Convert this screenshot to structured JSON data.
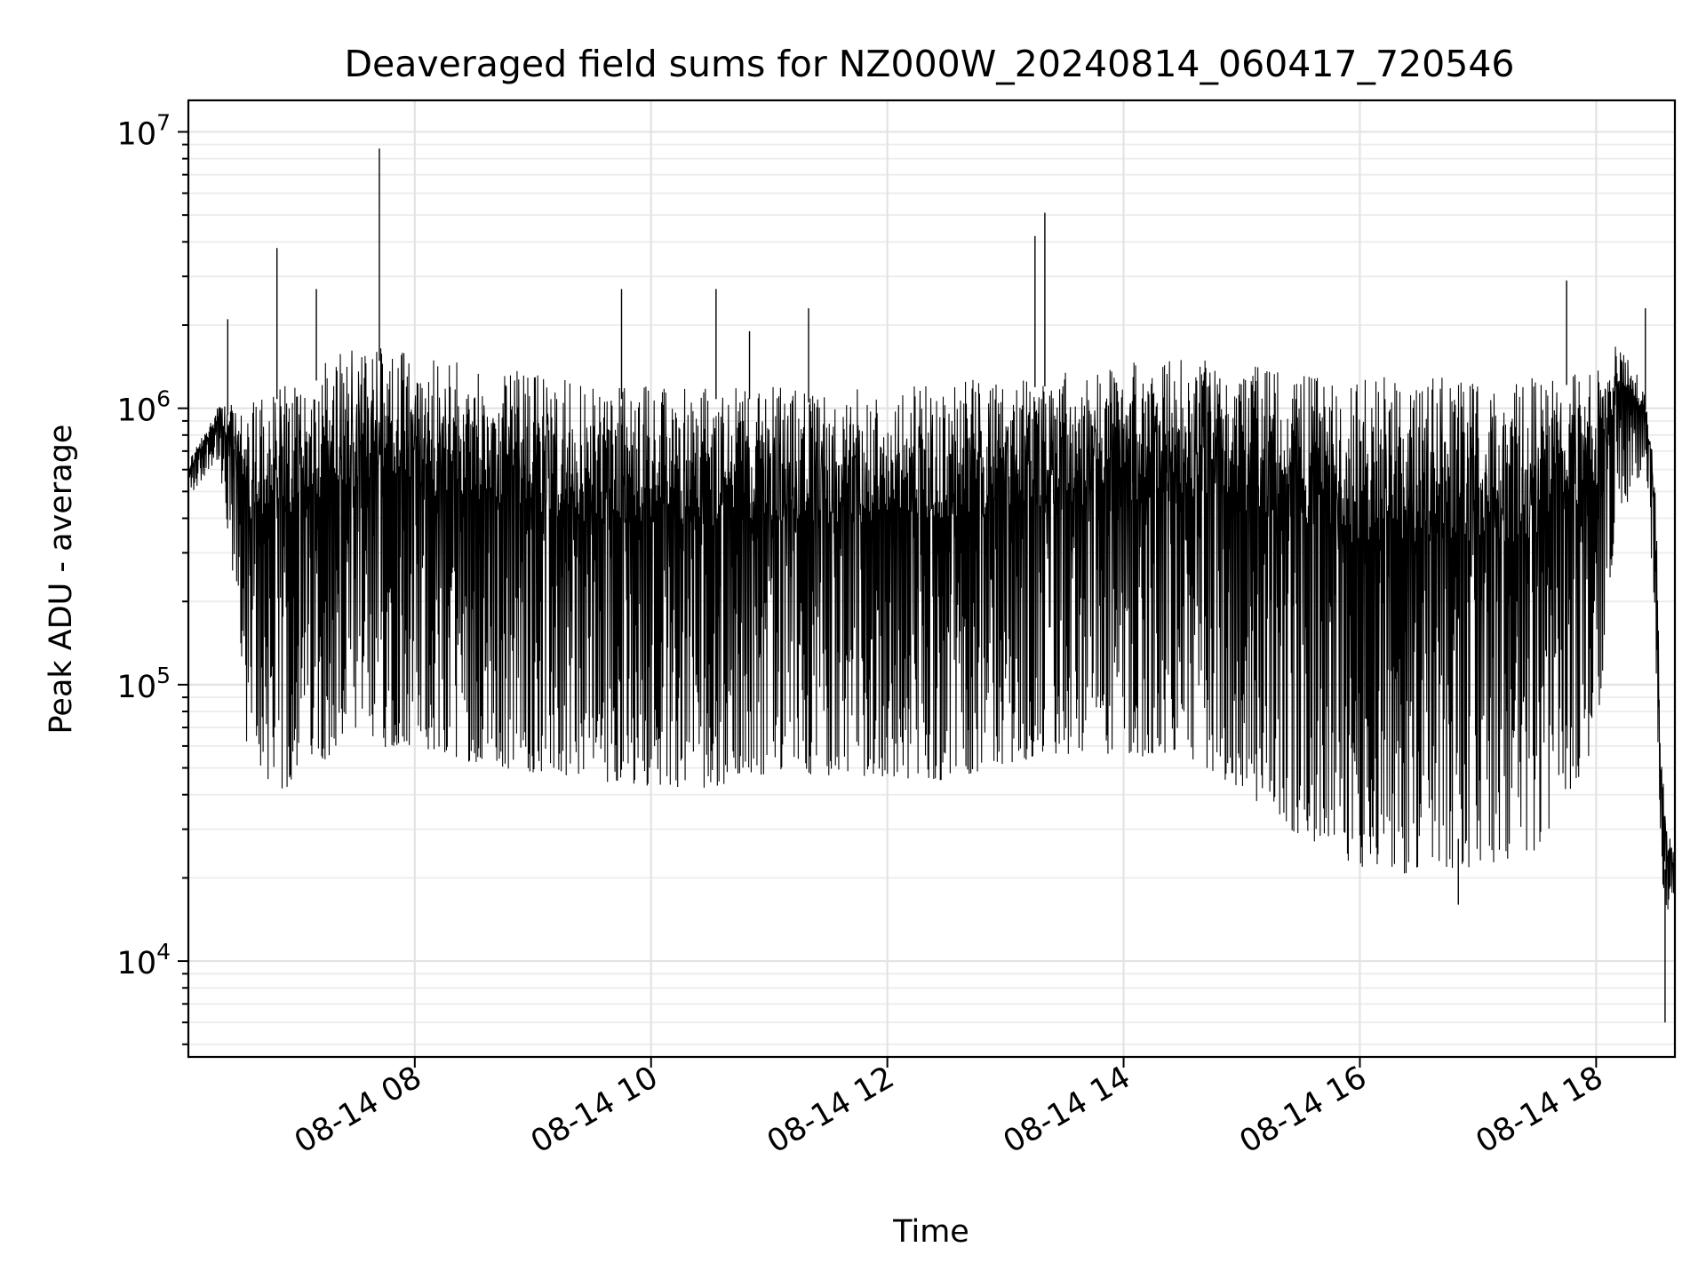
{
  "chart_data": {
    "type": "line",
    "title": "Deaveraged field sums for NZ000W_20240814_060417_720546",
    "xlabel": "Time",
    "ylabel": "Peak ADU - average",
    "yscale": "log",
    "ylim": [
      4500,
      13000000
    ],
    "xlim": [
      "2024-08-14 06:05",
      "2024-08-14 18:40"
    ],
    "grid": true,
    "x_ticks": [
      {
        "value": "2024-08-14 08:00",
        "label": "08-14 08"
      },
      {
        "value": "2024-08-14 10:00",
        "label": "08-14 10"
      },
      {
        "value": "2024-08-14 12:00",
        "label": "08-14 12"
      },
      {
        "value": "2024-08-14 14:00",
        "label": "08-14 14"
      },
      {
        "value": "2024-08-14 16:00",
        "label": "08-14 16"
      },
      {
        "value": "2024-08-14 18:00",
        "label": "08-14 18"
      }
    ],
    "y_ticks": [
      {
        "value": 10000,
        "base": "10",
        "exp": "4"
      },
      {
        "value": 100000,
        "base": "10",
        "exp": "5"
      },
      {
        "value": 1000000,
        "base": "10",
        "exp": "6"
      },
      {
        "value": 10000000,
        "base": "10",
        "exp": "7"
      }
    ],
    "line_color": "#000000",
    "series": [
      {
        "x": [
          "2024-08-14 06:05",
          "2024-08-14 06:10",
          "2024-08-14 06:15",
          "2024-08-14 06:20",
          "2024-08-14 06:25",
          "2024-08-14 06:30",
          "2024-08-14 06:35",
          "2024-08-14 06:40",
          "2024-08-14 06:45",
          "2024-08-14 06:50",
          "2024-08-14 06:55",
          "2024-08-14 07:00",
          "2024-08-14 07:10",
          "2024-08-14 07:20",
          "2024-08-14 07:30",
          "2024-08-14 07:40",
          "2024-08-14 07:50",
          "2024-08-14 08:00",
          "2024-08-14 08:30",
          "2024-08-14 09:00",
          "2024-08-14 09:30",
          "2024-08-14 10:00",
          "2024-08-14 10:30",
          "2024-08-14 11:00",
          "2024-08-14 11:30",
          "2024-08-14 12:00",
          "2024-08-14 12:30",
          "2024-08-14 13:00",
          "2024-08-14 13:30",
          "2024-08-14 14:00",
          "2024-08-14 14:30",
          "2024-08-14 15:00",
          "2024-08-14 15:30",
          "2024-08-14 16:00",
          "2024-08-14 16:30",
          "2024-08-14 17:00",
          "2024-08-14 17:30",
          "2024-08-14 18:00",
          "2024-08-14 18:10",
          "2024-08-14 18:20",
          "2024-08-14 18:25",
          "2024-08-14 18:30",
          "2024-08-14 18:33",
          "2024-08-14 18:36",
          "2024-08-14 18:40"
        ],
        "high": [
          650000,
          760000,
          850000,
          1100000,
          1050000,
          1000000,
          900000,
          1200000,
          1100000,
          1200000,
          1250000,
          1200000,
          1400000,
          1600000,
          1650000,
          1650000,
          1650000,
          1550000,
          1450000,
          1350000,
          1200000,
          1200000,
          1200000,
          1200000,
          1150000,
          1200000,
          1250000,
          1300000,
          1350000,
          1450000,
          1550000,
          1450000,
          1350000,
          1300000,
          1300000,
          1300000,
          1300000,
          1400000,
          1700000,
          1500000,
          1100000,
          600000,
          60000,
          30000,
          25000
        ],
        "low": [
          480000,
          520000,
          600000,
          650000,
          300000,
          200000,
          55000,
          50000,
          45000,
          42000,
          40000,
          50000,
          55000,
          52000,
          55000,
          58000,
          60000,
          60000,
          52000,
          48000,
          45000,
          43000,
          42000,
          48000,
          47000,
          46000,
          45000,
          52000,
          55000,
          55000,
          55000,
          42000,
          28000,
          22000,
          20000,
          22000,
          25000,
          60000,
          400000,
          500000,
          700000,
          150000,
          20000,
          15000,
          18000
        ],
        "spikes": [
          {
            "x": "2024-08-14 06:25",
            "y": 2100000
          },
          {
            "x": "2024-08-14 06:50",
            "y": 3800000
          },
          {
            "x": "2024-08-14 07:10",
            "y": 2700000
          },
          {
            "x": "2024-08-14 07:42",
            "y": 8700000
          },
          {
            "x": "2024-08-14 09:45",
            "y": 2700000
          },
          {
            "x": "2024-08-14 10:33",
            "y": 2700000
          },
          {
            "x": "2024-08-14 10:50",
            "y": 1900000
          },
          {
            "x": "2024-08-14 11:20",
            "y": 2300000
          },
          {
            "x": "2024-08-14 13:15",
            "y": 4200000
          },
          {
            "x": "2024-08-14 13:20",
            "y": 5100000
          },
          {
            "x": "2024-08-14 17:45",
            "y": 2900000
          },
          {
            "x": "2024-08-14 18:25",
            "y": 2300000
          }
        ],
        "dips": [
          {
            "x": "2024-08-14 16:50",
            "y": 16000
          },
          {
            "x": "2024-08-14 18:35",
            "y": 6000
          }
        ]
      }
    ]
  }
}
